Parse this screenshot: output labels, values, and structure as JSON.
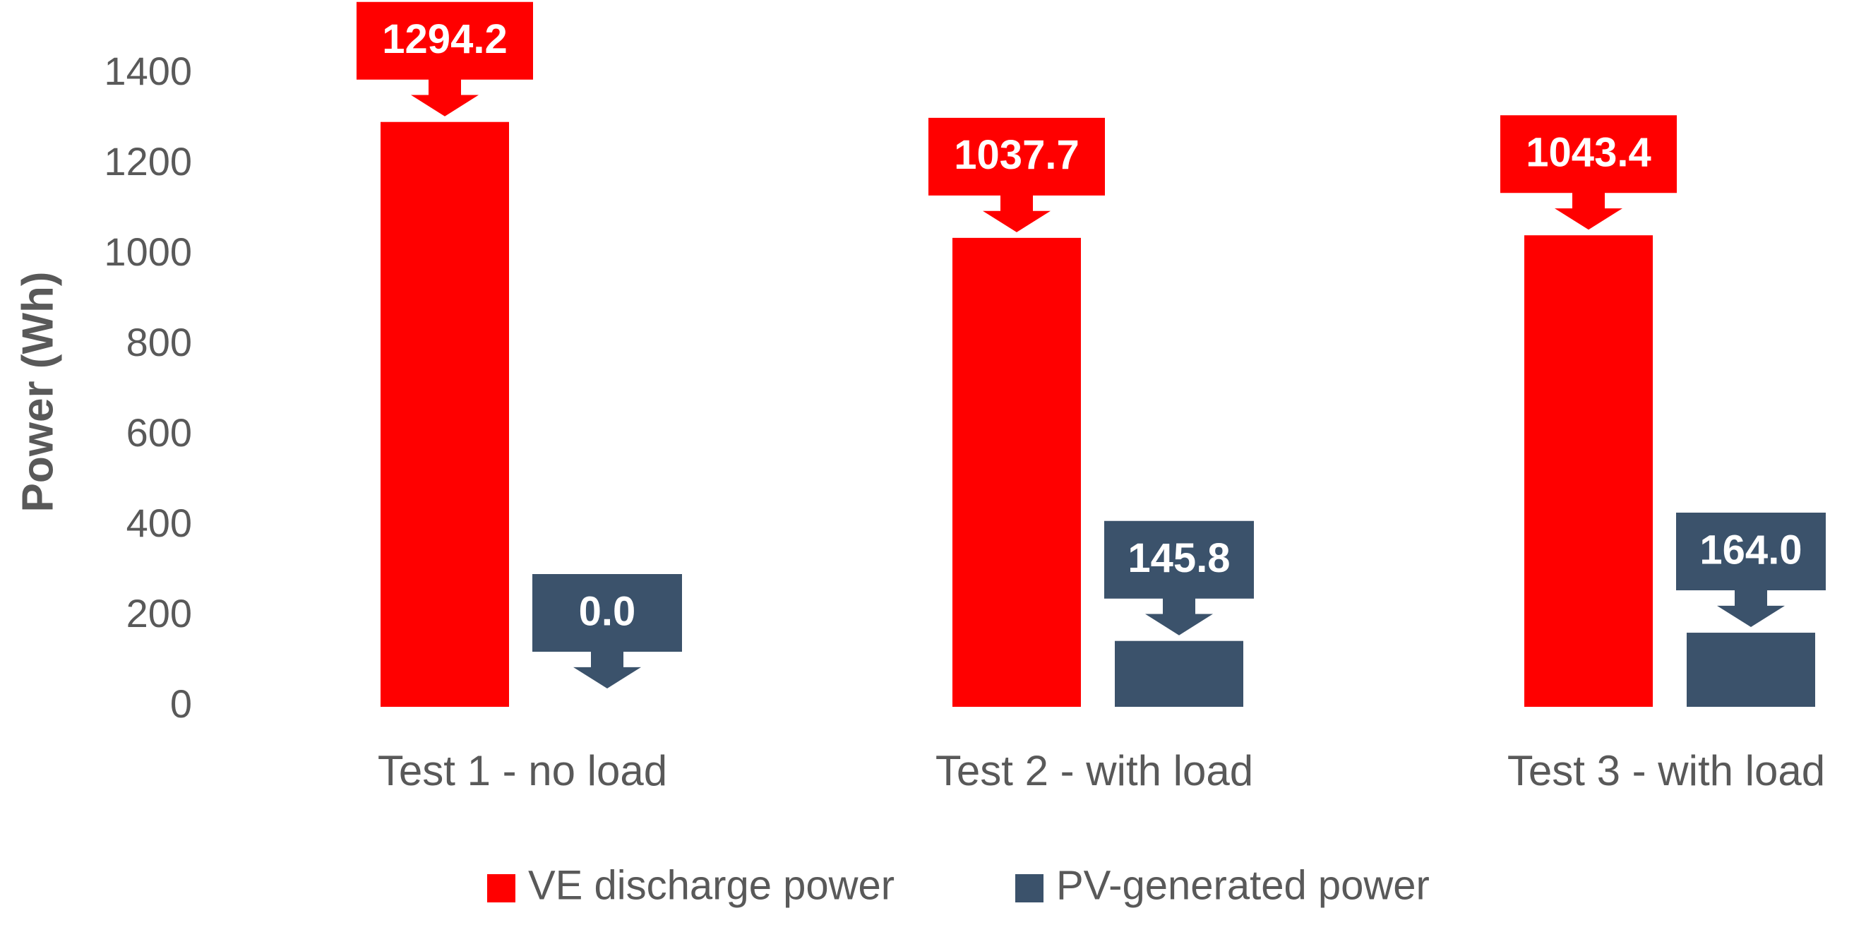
{
  "chart_data": {
    "type": "bar",
    "categories": [
      "Test 1 - no load",
      "Test 2 - with load",
      "Test 3 - with load"
    ],
    "series": [
      {
        "name": "VE discharge power",
        "values": [
          1294.2,
          1037.7,
          1043.4
        ],
        "labels": [
          "1294.2",
          "1037.7",
          "1043.4"
        ],
        "color": "#ff0000"
      },
      {
        "name": "PV-generated power",
        "values": [
          0.0,
          145.8,
          164.0
        ],
        "labels": [
          "0.0",
          "145.8",
          "164.0"
        ],
        "color": "#3b526b"
      }
    ],
    "title": "",
    "xlabel": "",
    "ylabel": "Power (Wh)",
    "ylim": [
      0,
      1400
    ],
    "yticks": [
      0,
      200,
      400,
      600,
      800,
      1000,
      1200,
      1400
    ],
    "ytick_labels": [
      "0",
      "200",
      "400",
      "600",
      "800",
      "1000",
      "1200",
      "1400"
    ],
    "grid": false,
    "legend_position": "bottom",
    "data_label_style": "callout"
  }
}
